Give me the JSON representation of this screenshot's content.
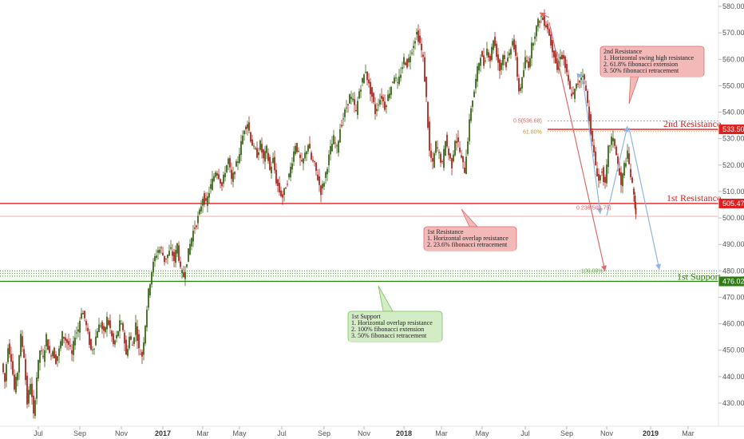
{
  "colors": {
    "resistance": "#e31c1c",
    "resistance_line": "#e31c1c",
    "support": "#2e7d12",
    "support_fill": "#cfe8c5",
    "up_candle": "#3a6b1a",
    "down_candle": "#b3261e",
    "fib_dotted": "#e85d5d",
    "fib_gold": "#c79a2a",
    "arrow_red": "#e06a6a",
    "arrow_blue": "#8fb4e3",
    "note_red_fill": "#f3b9b9",
    "note_red_stroke": "#e06a6a",
    "note_green_fill": "#d3ecc6",
    "note_green_stroke": "#7cbf62"
  },
  "chart_data": {
    "type": "candlestick",
    "y_axis": {
      "min": 420,
      "max": 582,
      "ticks": [
        430,
        440,
        450,
        460,
        470,
        480,
        490,
        500,
        510,
        520,
        530,
        540,
        550,
        560,
        570,
        580
      ]
    },
    "x_ticks": [
      {
        "label": "Jul",
        "bold": false
      },
      {
        "label": "Sep",
        "bold": false
      },
      {
        "label": "Nov",
        "bold": false
      },
      {
        "label": "2017",
        "bold": true
      },
      {
        "label": "Mar",
        "bold": false
      },
      {
        "label": "May",
        "bold": false
      },
      {
        "label": "Jul",
        "bold": false
      },
      {
        "label": "Sep",
        "bold": false
      },
      {
        "label": "Nov",
        "bold": false
      },
      {
        "label": "2018",
        "bold": true
      },
      {
        "label": "Mar",
        "bold": false
      },
      {
        "label": "May",
        "bold": false
      },
      {
        "label": "Jul",
        "bold": false
      },
      {
        "label": "Sep",
        "bold": false
      },
      {
        "label": "Nov",
        "bold": false
      },
      {
        "label": "2019",
        "bold": true
      },
      {
        "label": "Mar",
        "bold": false
      }
    ],
    "price_path": [
      [
        0,
        445
      ],
      [
        4,
        438
      ],
      [
        8,
        452
      ],
      [
        12,
        447
      ],
      [
        16,
        435
      ],
      [
        20,
        442
      ],
      [
        24,
        455
      ],
      [
        28,
        448
      ],
      [
        32,
        430
      ],
      [
        36,
        438
      ],
      [
        40,
        425
      ],
      [
        44,
        440
      ],
      [
        48,
        450
      ],
      [
        52,
        447
      ],
      [
        56,
        455
      ],
      [
        60,
        448
      ],
      [
        64,
        450
      ],
      [
        68,
        446
      ],
      [
        72,
        450
      ],
      [
        76,
        456
      ],
      [
        80,
        454
      ],
      [
        84,
        452
      ],
      [
        88,
        448
      ],
      [
        92,
        456
      ],
      [
        96,
        458
      ],
      [
        100,
        465
      ],
      [
        104,
        462
      ],
      [
        108,
        456
      ],
      [
        112,
        450
      ],
      [
        116,
        452
      ],
      [
        120,
        458
      ],
      [
        124,
        460
      ],
      [
        128,
        456
      ],
      [
        132,
        462
      ],
      [
        136,
        458
      ],
      [
        140,
        452
      ],
      [
        144,
        455
      ],
      [
        148,
        460
      ],
      [
        152,
        458
      ],
      [
        156,
        448
      ],
      [
        160,
        455
      ],
      [
        164,
        452
      ],
      [
        168,
        460
      ],
      [
        172,
        450
      ],
      [
        176,
        448
      ],
      [
        180,
        460
      ],
      [
        184,
        472
      ],
      [
        188,
        480
      ],
      [
        192,
        485
      ],
      [
        196,
        488
      ],
      [
        200,
        488
      ],
      [
        204,
        484
      ],
      [
        208,
        486
      ],
      [
        212,
        488
      ],
      [
        216,
        484
      ],
      [
        220,
        490
      ],
      [
        224,
        480
      ],
      [
        228,
        478
      ],
      [
        232,
        484
      ],
      [
        236,
        490
      ],
      [
        240,
        495
      ],
      [
        244,
        498
      ],
      [
        248,
        502
      ],
      [
        252,
        508
      ],
      [
        256,
        505
      ],
      [
        260,
        510
      ],
      [
        264,
        514
      ],
      [
        268,
        518
      ],
      [
        272,
        516
      ],
      [
        276,
        512
      ],
      [
        280,
        518
      ],
      [
        284,
        522
      ],
      [
        288,
        514
      ],
      [
        292,
        518
      ],
      [
        296,
        522
      ],
      [
        300,
        528
      ],
      [
        304,
        534
      ],
      [
        308,
        536
      ],
      [
        312,
        530
      ],
      [
        316,
        526
      ],
      [
        320,
        524
      ],
      [
        324,
        528
      ],
      [
        328,
        522
      ],
      [
        332,
        526
      ],
      [
        336,
        518
      ],
      [
        340,
        522
      ],
      [
        344,
        514
      ],
      [
        348,
        510
      ],
      [
        352,
        508
      ],
      [
        356,
        512
      ],
      [
        360,
        516
      ],
      [
        364,
        522
      ],
      [
        368,
        528
      ],
      [
        372,
        524
      ],
      [
        376,
        520
      ],
      [
        380,
        524
      ],
      [
        384,
        528
      ],
      [
        388,
        522
      ],
      [
        392,
        520
      ],
      [
        396,
        515
      ],
      [
        400,
        510
      ],
      [
        404,
        514
      ],
      [
        408,
        520
      ],
      [
        412,
        526
      ],
      [
        416,
        530
      ],
      [
        420,
        526
      ],
      [
        424,
        534
      ],
      [
        428,
        538
      ],
      [
        432,
        542
      ],
      [
        436,
        546
      ],
      [
        440,
        544
      ],
      [
        444,
        540
      ],
      [
        448,
        548
      ],
      [
        452,
        552
      ],
      [
        456,
        556
      ],
      [
        460,
        550
      ],
      [
        464,
        546
      ],
      [
        468,
        540
      ],
      [
        472,
        544
      ],
      [
        476,
        546
      ],
      [
        480,
        542
      ],
      [
        484,
        546
      ],
      [
        488,
        550
      ],
      [
        492,
        554
      ],
      [
        496,
        550
      ],
      [
        500,
        555
      ],
      [
        504,
        560
      ],
      [
        508,
        558
      ],
      [
        512,
        562
      ],
      [
        516,
        566
      ],
      [
        520,
        570
      ],
      [
        524,
        566
      ],
      [
        528,
        560
      ],
      [
        532,
        545
      ],
      [
        536,
        525
      ],
      [
        540,
        520
      ],
      [
        544,
        528
      ],
      [
        548,
        524
      ],
      [
        552,
        520
      ],
      [
        556,
        530
      ],
      [
        560,
        524
      ],
      [
        564,
        520
      ],
      [
        568,
        530
      ],
      [
        572,
        528
      ],
      [
        576,
        522
      ],
      [
        580,
        518
      ],
      [
        584,
        530
      ],
      [
        588,
        542
      ],
      [
        592,
        548
      ],
      [
        596,
        556
      ],
      [
        600,
        562
      ],
      [
        604,
        558
      ],
      [
        608,
        564
      ],
      [
        612,
        560
      ],
      [
        616,
        568
      ],
      [
        620,
        562
      ],
      [
        624,
        556
      ],
      [
        628,
        562
      ],
      [
        632,
        558
      ],
      [
        636,
        562
      ],
      [
        640,
        568
      ],
      [
        644,
        560
      ],
      [
        648,
        548
      ],
      [
        652,
        552
      ],
      [
        656,
        560
      ],
      [
        660,
        558
      ],
      [
        664,
        565
      ],
      [
        668,
        570
      ],
      [
        672,
        574
      ],
      [
        676,
        576
      ],
      [
        680,
        574
      ],
      [
        684,
        572
      ],
      [
        688,
        566
      ],
      [
        692,
        562
      ],
      [
        696,
        556
      ],
      [
        700,
        562
      ],
      [
        704,
        560
      ],
      [
        708,
        554
      ],
      [
        712,
        548
      ],
      [
        716,
        546
      ],
      [
        720,
        550
      ],
      [
        724,
        552
      ],
      [
        728,
        555
      ],
      [
        732,
        548
      ],
      [
        736,
        538
      ],
      [
        740,
        528
      ],
      [
        744,
        520
      ],
      [
        748,
        514
      ],
      [
        752,
        518
      ],
      [
        756,
        512
      ],
      [
        760,
        526
      ],
      [
        764,
        530
      ],
      [
        768,
        528
      ],
      [
        772,
        520
      ],
      [
        776,
        512
      ],
      [
        780,
        520
      ],
      [
        784,
        524
      ],
      [
        788,
        516
      ],
      [
        792,
        508
      ],
      [
        794,
        502
      ]
    ],
    "levels": [
      {
        "name": "2nd Resistance",
        "price": 533.5,
        "tag": "533.50"
      },
      {
        "name": "1st Resistance",
        "price": 505.47,
        "tag": "505.47"
      },
      {
        "name": "1st Support",
        "price": 476.02,
        "tag": "476.02"
      }
    ],
    "fib_labels": [
      {
        "text": "0.5(536.68)",
        "price": 536.68
      },
      {
        "text": "61.80%",
        "price": 533.0
      },
      {
        "text": "0.236(503.75)",
        "price": 503.75
      },
      {
        "text": "100.00%",
        "price": 480.0
      }
    ],
    "notes": [
      {
        "id": "note-2nd-resistance",
        "style": "red",
        "lines": [
          "2nd Resistance",
          "1. Horizontal swing high resistance",
          "2. 61.8% fibonacci extension",
          "3. 50% fibonacci retracement"
        ]
      },
      {
        "id": "note-1st-resistance",
        "style": "red",
        "lines": [
          "1st Resistance",
          "1. Horizontal overlap resistance",
          "2. 23.6% fibonacci retracement"
        ]
      },
      {
        "id": "note-1st-support",
        "style": "green",
        "lines": [
          "1st Support",
          "1. Horizontal overlap resistance",
          "2. 100% fibonacci extension",
          "3. 50% fibonacci retracement"
        ]
      }
    ]
  }
}
